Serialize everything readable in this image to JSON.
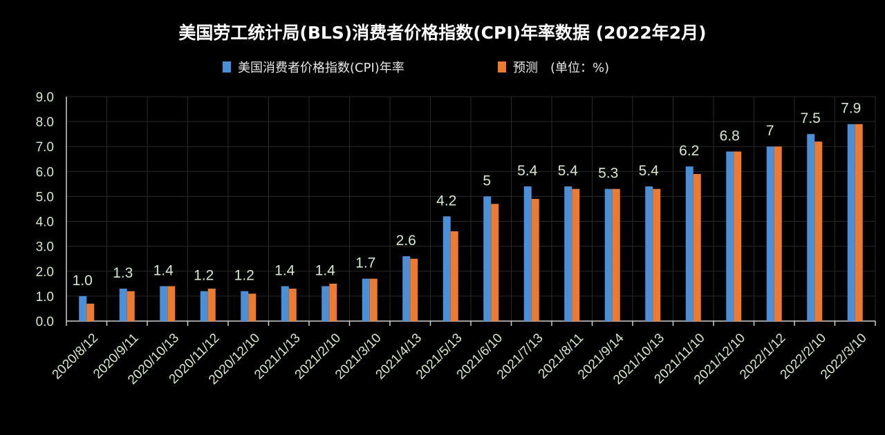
{
  "chart_data": {
    "type": "bar",
    "title": "美国劳工统计局(BLS)消费者价格指数(CPI)年率数据 (2022年2月)",
    "categories": [
      "2020/8/12",
      "2020/9/11",
      "2020/10/13",
      "2020/11/12",
      "2020/12/10",
      "2021/1/13",
      "2021/2/10",
      "2021/3/10",
      "2021/4/13",
      "2021/5/13",
      "2021/6/10",
      "2021/7/13",
      "2021/8/11",
      "2021/9/14",
      "2021/10/13",
      "2021/11/10",
      "2021/12/10",
      "2022/1/12",
      "2022/2/10",
      "2022/3/10"
    ],
    "series": [
      {
        "name": "美国消费者价格指数(CPI)年率",
        "color": "#4a90d9",
        "values": [
          1.0,
          1.3,
          1.4,
          1.2,
          1.2,
          1.4,
          1.4,
          1.7,
          2.6,
          4.2,
          5,
          5.4,
          5.4,
          5.3,
          5.4,
          6.2,
          6.8,
          7,
          7.5,
          7.9
        ],
        "data_labels": [
          "1.0",
          "1.3",
          "1.4",
          "1.2",
          "1.2",
          "1.4",
          "1.4",
          "1.7",
          "2.6",
          "4.2",
          "5",
          "5.4",
          "5.4",
          "5.3",
          "5.4",
          "6.2",
          "6.8",
          "7",
          "7.5",
          "7.9"
        ]
      },
      {
        "name": "预测",
        "color": "#ee7a30",
        "values": [
          0.7,
          1.2,
          1.4,
          1.3,
          1.1,
          1.3,
          1.5,
          1.7,
          2.5,
          3.6,
          4.7,
          4.9,
          5.3,
          5.3,
          5.3,
          5.9,
          6.8,
          7.0,
          7.2,
          7.9
        ]
      }
    ],
    "unit_note": "(单位：%)",
    "ylim": [
      0,
      9
    ],
    "yticks": [
      "0.0",
      "1.0",
      "2.0",
      "3.0",
      "4.0",
      "5.0",
      "6.0",
      "7.0",
      "8.0",
      "9.0"
    ],
    "grid": true,
    "legend_position": "top",
    "xlabel": "",
    "ylabel": ""
  }
}
